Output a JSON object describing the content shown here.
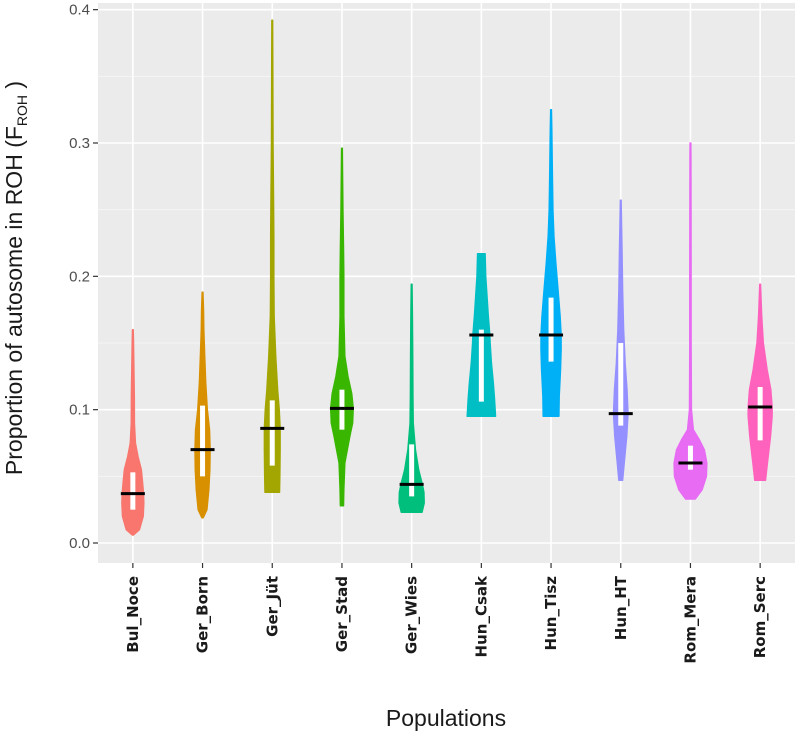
{
  "chart_data": {
    "type": "violin",
    "title": "",
    "xlabel": "Populations",
    "ylabel": "Proportion of autosome in ROH (F",
    "ylabel_sub": "ROH",
    "ylabel_end": " )",
    "ylim": [
      -0.015,
      0.405
    ],
    "yticks": [
      0.0,
      0.1,
      0.2,
      0.3,
      0.4
    ],
    "ytick_labels": [
      "0.0",
      "0.1",
      "0.2",
      "0.3",
      "0.4"
    ],
    "grid": true,
    "legend": "none",
    "categories": [
      "Bul_Noce",
      "Ger_Born",
      "Ger_Jüt",
      "Ger_Stad",
      "Ger_Wies",
      "Hun_Csak",
      "Hun_Tisz",
      "Hun_HT",
      "Rom_Mera",
      "Rom_Serc"
    ],
    "series": [
      {
        "name": "Bul_Noce",
        "color": "#F8766D",
        "median": 0.037,
        "q1": 0.025,
        "q3": 0.053,
        "profile": [
          [
            0.006,
            0.015
          ],
          [
            0.01,
            0.21
          ],
          [
            0.02,
            0.33
          ],
          [
            0.03,
            0.35
          ],
          [
            0.037,
            0.34
          ],
          [
            0.045,
            0.31
          ],
          [
            0.055,
            0.27
          ],
          [
            0.065,
            0.16
          ],
          [
            0.075,
            0.08
          ],
          [
            0.09,
            0.05
          ],
          [
            0.11,
            0.045
          ],
          [
            0.13,
            0.035
          ],
          [
            0.15,
            0.02
          ],
          [
            0.16,
            0.012
          ]
        ]
      },
      {
        "name": "Ger_Born",
        "color": "#D89000",
        "median": 0.07,
        "q1": 0.05,
        "q3": 0.103,
        "profile": [
          [
            0.019,
            0.02
          ],
          [
            0.025,
            0.14
          ],
          [
            0.04,
            0.2
          ],
          [
            0.055,
            0.23
          ],
          [
            0.07,
            0.24
          ],
          [
            0.085,
            0.22
          ],
          [
            0.1,
            0.15
          ],
          [
            0.12,
            0.1
          ],
          [
            0.14,
            0.07
          ],
          [
            0.16,
            0.04
          ],
          [
            0.175,
            0.03
          ],
          [
            0.188,
            0.01
          ]
        ]
      },
      {
        "name": "Ger_Jüt",
        "color": "#A3A500",
        "median": 0.086,
        "q1": 0.058,
        "q3": 0.107,
        "profile": [
          [
            0.038,
            0.23
          ],
          [
            0.05,
            0.24
          ],
          [
            0.07,
            0.25
          ],
          [
            0.086,
            0.25
          ],
          [
            0.1,
            0.22
          ],
          [
            0.115,
            0.17
          ],
          [
            0.14,
            0.11
          ],
          [
            0.17,
            0.06
          ],
          [
            0.2,
            0.05
          ],
          [
            0.23,
            0.05
          ],
          [
            0.26,
            0.04
          ],
          [
            0.3,
            0.025
          ],
          [
            0.35,
            0.018
          ],
          [
            0.392,
            0.012
          ]
        ]
      },
      {
        "name": "Ger_Stad",
        "color": "#39B600",
        "median": 0.101,
        "q1": 0.085,
        "q3": 0.115,
        "profile": [
          [
            0.028,
            0.05
          ],
          [
            0.04,
            0.06
          ],
          [
            0.06,
            0.09
          ],
          [
            0.08,
            0.25
          ],
          [
            0.09,
            0.34
          ],
          [
            0.101,
            0.36
          ],
          [
            0.112,
            0.31
          ],
          [
            0.125,
            0.19
          ],
          [
            0.14,
            0.09
          ],
          [
            0.17,
            0.06
          ],
          [
            0.2,
            0.06
          ],
          [
            0.22,
            0.05
          ],
          [
            0.25,
            0.03
          ],
          [
            0.296,
            0.012
          ]
        ]
      },
      {
        "name": "Ger_Wies",
        "color": "#00BF7D",
        "median": 0.044,
        "q1": 0.035,
        "q3": 0.074,
        "profile": [
          [
            0.023,
            0.33
          ],
          [
            0.03,
            0.4
          ],
          [
            0.038,
            0.39
          ],
          [
            0.044,
            0.34
          ],
          [
            0.055,
            0.22
          ],
          [
            0.07,
            0.12
          ],
          [
            0.09,
            0.05
          ],
          [
            0.11,
            0.04
          ],
          [
            0.14,
            0.035
          ],
          [
            0.17,
            0.025
          ],
          [
            0.194,
            0.01
          ]
        ]
      },
      {
        "name": "Hun_Csak",
        "color": "#00BFC4",
        "median": 0.156,
        "q1": 0.106,
        "q3": 0.16,
        "profile": [
          [
            0.095,
            0.45
          ],
          [
            0.108,
            0.42
          ],
          [
            0.12,
            0.38
          ],
          [
            0.135,
            0.32
          ],
          [
            0.15,
            0.28
          ],
          [
            0.156,
            0.27
          ],
          [
            0.17,
            0.22
          ],
          [
            0.185,
            0.18
          ],
          [
            0.2,
            0.14
          ],
          [
            0.217,
            0.12
          ]
        ]
      },
      {
        "name": "Hun_Tisz",
        "color": "#00B0F6",
        "median": 0.156,
        "q1": 0.136,
        "q3": 0.184,
        "profile": [
          [
            0.095,
            0.25
          ],
          [
            0.11,
            0.26
          ],
          [
            0.13,
            0.3
          ],
          [
            0.145,
            0.32
          ],
          [
            0.156,
            0.32
          ],
          [
            0.17,
            0.29
          ],
          [
            0.19,
            0.22
          ],
          [
            0.21,
            0.15
          ],
          [
            0.23,
            0.09
          ],
          [
            0.25,
            0.06
          ],
          [
            0.28,
            0.04
          ],
          [
            0.31,
            0.025
          ],
          [
            0.325,
            0.012
          ]
        ]
      },
      {
        "name": "Hun_HT",
        "color": "#9590FF",
        "median": 0.097,
        "q1": 0.088,
        "q3": 0.15,
        "profile": [
          [
            0.047,
            0.06
          ],
          [
            0.06,
            0.11
          ],
          [
            0.08,
            0.19
          ],
          [
            0.097,
            0.23
          ],
          [
            0.115,
            0.2
          ],
          [
            0.135,
            0.14
          ],
          [
            0.16,
            0.09
          ],
          [
            0.19,
            0.06
          ],
          [
            0.22,
            0.04
          ],
          [
            0.257,
            0.012
          ]
        ]
      },
      {
        "name": "Rom_Mera",
        "color": "#E76BF3",
        "median": 0.06,
        "q1": 0.055,
        "q3": 0.073,
        "profile": [
          [
            0.033,
            0.15
          ],
          [
            0.04,
            0.37
          ],
          [
            0.05,
            0.51
          ],
          [
            0.06,
            0.52
          ],
          [
            0.07,
            0.44
          ],
          [
            0.078,
            0.27
          ],
          [
            0.085,
            0.09
          ],
          [
            0.1,
            0.03
          ],
          [
            0.15,
            0.022
          ],
          [
            0.2,
            0.02
          ],
          [
            0.25,
            0.018
          ],
          [
            0.29,
            0.013
          ],
          [
            0.3,
            0.01
          ]
        ]
      },
      {
        "name": "Rom_Serc",
        "color": "#FF62BC",
        "median": 0.102,
        "q1": 0.077,
        "q3": 0.117,
        "profile": [
          [
            0.047,
            0.17
          ],
          [
            0.06,
            0.23
          ],
          [
            0.08,
            0.33
          ],
          [
            0.095,
            0.38
          ],
          [
            0.102,
            0.38
          ],
          [
            0.115,
            0.34
          ],
          [
            0.13,
            0.22
          ],
          [
            0.15,
            0.1
          ],
          [
            0.17,
            0.05
          ],
          [
            0.194,
            0.012
          ]
        ]
      }
    ]
  }
}
